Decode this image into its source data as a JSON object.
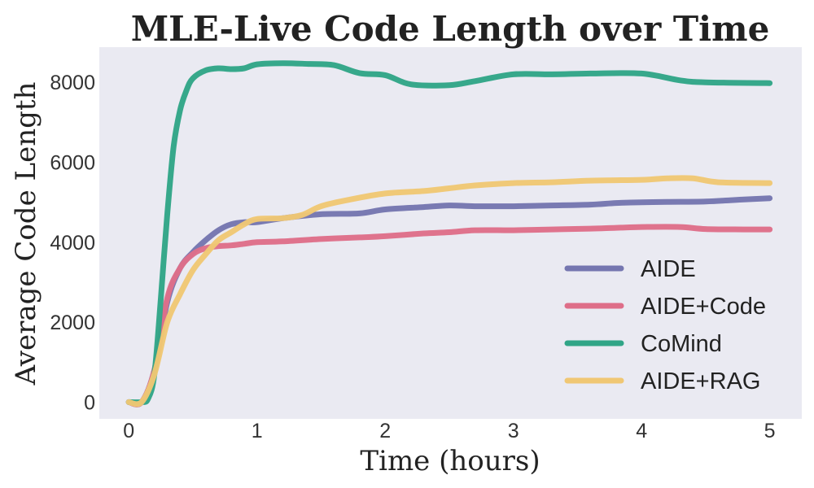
{
  "chart_data": {
    "type": "line",
    "title": "MLE-Live Code Length over Time",
    "xlabel": "Time (hours)",
    "ylabel": "Average Code Length",
    "xlim": [
      -0.23,
      5.25
    ],
    "ylim": [
      -420,
      8880
    ],
    "x_ticks": [
      0,
      1,
      2,
      3,
      4,
      5
    ],
    "y_ticks": [
      0,
      2000,
      4000,
      6000,
      8000
    ],
    "x_tick_labels": [
      "0",
      "1",
      "2",
      "3",
      "4",
      "5"
    ],
    "y_tick_labels": [
      "0",
      "2000",
      "4000",
      "6000",
      "8000"
    ],
    "grid": false,
    "legend_position": "lower-right",
    "background": "#EAEAF2",
    "series": [
      {
        "name": "AIDE",
        "color": "#7576B0",
        "points": [
          [
            0,
            0
          ],
          [
            0.1,
            0
          ],
          [
            0.2,
            800
          ],
          [
            0.3,
            2500
          ],
          [
            0.4,
            3350
          ],
          [
            0.5,
            3750
          ],
          [
            0.6,
            4050
          ],
          [
            0.7,
            4300
          ],
          [
            0.8,
            4450
          ],
          [
            0.9,
            4500
          ],
          [
            1.0,
            4500
          ],
          [
            1.2,
            4600
          ],
          [
            1.5,
            4700
          ],
          [
            1.8,
            4720
          ],
          [
            2.0,
            4820
          ],
          [
            2.3,
            4880
          ],
          [
            2.5,
            4920
          ],
          [
            2.7,
            4900
          ],
          [
            3.0,
            4900
          ],
          [
            3.3,
            4920
          ],
          [
            3.6,
            4940
          ],
          [
            3.8,
            4980
          ],
          [
            4.0,
            5000
          ],
          [
            4.2,
            5010
          ],
          [
            4.5,
            5020
          ],
          [
            4.8,
            5070
          ],
          [
            5.0,
            5100
          ]
        ]
      },
      {
        "name": "AIDE+Code",
        "color": "#DE6E89",
        "points": [
          [
            0,
            0
          ],
          [
            0.1,
            0
          ],
          [
            0.2,
            800
          ],
          [
            0.3,
            2600
          ],
          [
            0.4,
            3350
          ],
          [
            0.5,
            3700
          ],
          [
            0.6,
            3850
          ],
          [
            0.7,
            3900
          ],
          [
            0.8,
            3920
          ],
          [
            0.9,
            3960
          ],
          [
            1.0,
            4000
          ],
          [
            1.2,
            4020
          ],
          [
            1.5,
            4080
          ],
          [
            1.8,
            4120
          ],
          [
            2.0,
            4150
          ],
          [
            2.3,
            4220
          ],
          [
            2.5,
            4250
          ],
          [
            2.7,
            4300
          ],
          [
            3.0,
            4300
          ],
          [
            3.3,
            4320
          ],
          [
            3.6,
            4340
          ],
          [
            3.8,
            4360
          ],
          [
            4.0,
            4380
          ],
          [
            4.3,
            4380
          ],
          [
            4.5,
            4330
          ],
          [
            4.8,
            4320
          ],
          [
            5.0,
            4320
          ]
        ]
      },
      {
        "name": "CoMind",
        "color": "#31A587",
        "points": [
          [
            0,
            0
          ],
          [
            0.1,
            0
          ],
          [
            0.15,
            80
          ],
          [
            0.2,
            700
          ],
          [
            0.25,
            2600
          ],
          [
            0.3,
            4700
          ],
          [
            0.35,
            6400
          ],
          [
            0.4,
            7300
          ],
          [
            0.45,
            7800
          ],
          [
            0.5,
            8100
          ],
          [
            0.6,
            8300
          ],
          [
            0.7,
            8350
          ],
          [
            0.8,
            8330
          ],
          [
            0.9,
            8350
          ],
          [
            1.0,
            8450
          ],
          [
            1.2,
            8480
          ],
          [
            1.4,
            8460
          ],
          [
            1.6,
            8430
          ],
          [
            1.8,
            8230
          ],
          [
            2.0,
            8180
          ],
          [
            2.2,
            7950
          ],
          [
            2.5,
            7930
          ],
          [
            2.7,
            8030
          ],
          [
            3.0,
            8200
          ],
          [
            3.3,
            8200
          ],
          [
            3.6,
            8220
          ],
          [
            4.0,
            8220
          ],
          [
            4.3,
            8050
          ],
          [
            4.5,
            8000
          ],
          [
            5.0,
            7980
          ]
        ]
      },
      {
        "name": "AIDE+RAG",
        "color": "#F0C774",
        "points": [
          [
            0,
            0
          ],
          [
            0.1,
            0
          ],
          [
            0.2,
            700
          ],
          [
            0.3,
            2000
          ],
          [
            0.4,
            2700
          ],
          [
            0.5,
            3300
          ],
          [
            0.6,
            3700
          ],
          [
            0.7,
            4050
          ],
          [
            0.8,
            4250
          ],
          [
            0.9,
            4450
          ],
          [
            1.0,
            4580
          ],
          [
            1.2,
            4600
          ],
          [
            1.35,
            4680
          ],
          [
            1.5,
            4900
          ],
          [
            1.7,
            5050
          ],
          [
            2.0,
            5220
          ],
          [
            2.3,
            5280
          ],
          [
            2.5,
            5350
          ],
          [
            2.7,
            5420
          ],
          [
            3.0,
            5480
          ],
          [
            3.3,
            5500
          ],
          [
            3.6,
            5540
          ],
          [
            4.0,
            5560
          ],
          [
            4.2,
            5600
          ],
          [
            4.4,
            5600
          ],
          [
            4.6,
            5500
          ],
          [
            5.0,
            5480
          ]
        ]
      }
    ]
  }
}
